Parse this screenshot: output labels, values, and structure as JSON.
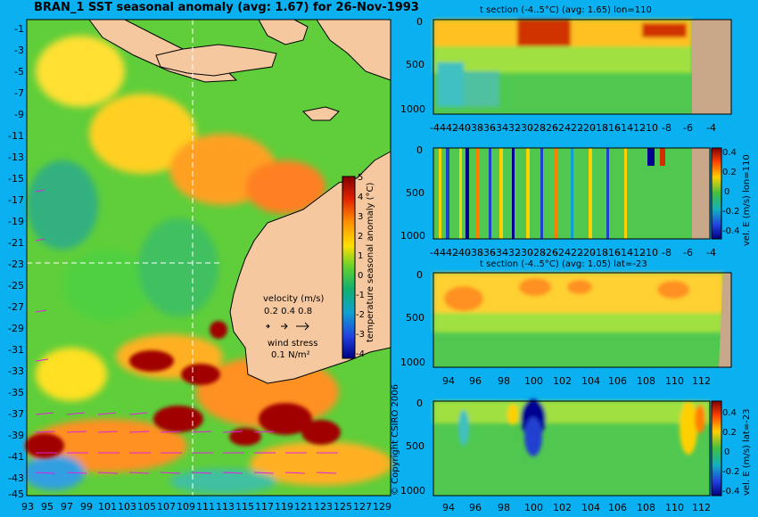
{
  "map": {
    "title": "BRAN_1  SST seasonal anomaly (avg: 1.67) for 26-Nov-1993",
    "lat_labels": [
      "-1",
      "-3",
      "-5",
      "-7",
      "-9",
      "-11",
      "-13",
      "-15",
      "-17",
      "-19",
      "-21",
      "-23",
      "-25",
      "-27",
      "-29",
      "-31",
      "-33",
      "-35",
      "-37",
      "-39",
      "-41",
      "-43",
      "-45"
    ],
    "lon_labels": [
      "93",
      "95",
      "97",
      "99",
      "101",
      "103",
      "105",
      "107",
      "109",
      "111",
      "113",
      "115",
      "117",
      "119",
      "121",
      "123",
      "125",
      "127",
      "129"
    ],
    "colorbar": {
      "label": "temperature seasonal anomaly (°C)",
      "ticks": [
        "5",
        "4",
        "3",
        "2",
        "1",
        "0",
        "-1",
        "-2",
        "-3",
        "-4"
      ]
    },
    "velocity_legend": {
      "title": "velocity (m/s)",
      "values": "0.2 0.4 0.8"
    },
    "wind_legend": {
      "title": "wind stress",
      "value": "0.1 N/m²"
    },
    "land_color": "#f5c8a0",
    "copyright": "© Copyright CSIRO 2006"
  },
  "panels": [
    {
      "title": "t section (-4..5°C) (avg: 1.65) lon=110",
      "y_ticks": [
        "0",
        "500",
        "1000"
      ],
      "x_ticks": [
        "-44",
        "-42",
        "-40",
        "-38",
        "-36",
        "-34",
        "-32",
        "-30",
        "-28",
        "-26",
        "-24",
        "-22",
        "-20",
        "-18",
        "-16",
        "-14",
        "-12",
        "-10",
        "-8",
        "-6",
        "-4"
      ],
      "colorbar": null
    },
    {
      "title": "",
      "y_ticks": [
        "0",
        "500",
        "1000"
      ],
      "x_ticks": [
        "-44",
        "-42",
        "-40",
        "-38",
        "-36",
        "-34",
        "-32",
        "-30",
        "-28",
        "-26",
        "-24",
        "-22",
        "-20",
        "-18",
        "-16",
        "-14",
        "-12",
        "-10",
        "-8",
        "-6",
        "-4"
      ],
      "colorbar": {
        "label": "vel. E (m/s) lon=110",
        "ticks": [
          "0.4",
          "0.2",
          "0",
          "-0.2",
          "-0.4"
        ]
      }
    },
    {
      "title": "t section (-4..5°C) (avg: 1.05) lat=-23",
      "y_ticks": [
        "0",
        "500",
        "1000"
      ],
      "x_ticks": [
        "94",
        "96",
        "98",
        "100",
        "102",
        "104",
        "106",
        "108",
        "110",
        "112"
      ],
      "colorbar": null
    },
    {
      "title": "",
      "y_ticks": [
        "0",
        "500",
        "1000"
      ],
      "x_ticks": [
        "94",
        "96",
        "98",
        "100",
        "102",
        "104",
        "106",
        "108",
        "110",
        "112"
      ],
      "colorbar": {
        "label": "vel. E (m/s) lat=-23",
        "ticks": [
          "0.4",
          "0.2",
          "0",
          "-0.2",
          "-0.4"
        ]
      }
    }
  ],
  "chart_data": [
    {
      "type": "heatmap",
      "title": "BRAN_1  SST seasonal anomaly (avg: 1.67) for 26-Nov-1993",
      "x_range": [
        93,
        130
      ],
      "y_range": [
        -45,
        0
      ],
      "color_range": [
        -4,
        5
      ],
      "average": 1.67
    },
    {
      "type": "heatmap",
      "title": "t section (-4..5°C) (avg: 1.65) lon=110",
      "x_range": [
        -45,
        -3
      ],
      "y_range": [
        1050,
        0
      ],
      "color_range": [
        -4,
        5
      ],
      "average": 1.65
    },
    {
      "type": "heatmap",
      "title": "",
      "x_range": [
        -45,
        -3
      ],
      "y_range": [
        1050,
        0
      ],
      "color_range": [
        -0.4,
        0.4
      ]
    },
    {
      "type": "heatmap",
      "title": "t section (-4..5°C) (avg: 1.05) lat=-23",
      "x_range": [
        93,
        114
      ],
      "y_range": [
        1050,
        0
      ],
      "color_range": [
        -4,
        5
      ],
      "average": 1.05
    },
    {
      "type": "heatmap",
      "title": "",
      "x_range": [
        93,
        114
      ],
      "y_range": [
        1050,
        0
      ],
      "color_range": [
        -0.4,
        0.4
      ]
    }
  ]
}
